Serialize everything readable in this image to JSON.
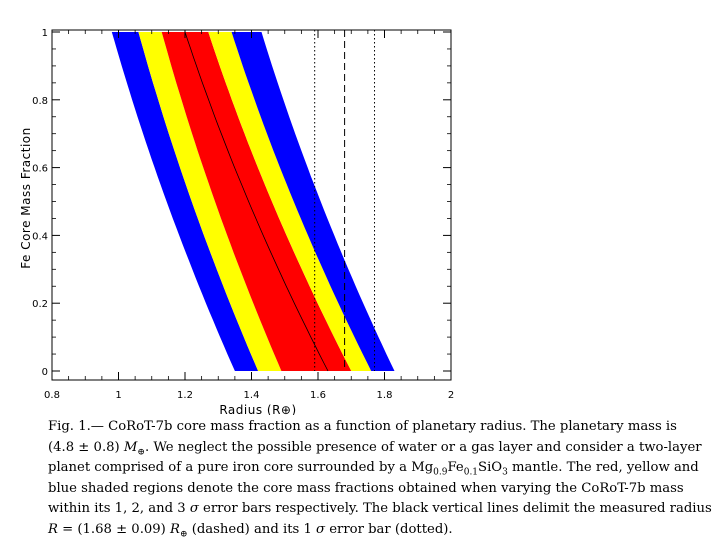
{
  "chart_data": {
    "type": "area",
    "xlabel": "Radius (R⊕)",
    "ylabel": "Fe Core Mass Fraction",
    "xlim": [
      0.8,
      2.0
    ],
    "ylim": [
      0,
      1
    ],
    "x_ticks": [
      "0.8",
      "1",
      "1.2",
      "1.4",
      "1.6",
      "1.8",
      "2"
    ],
    "y_ticks": [
      "0",
      "0.2",
      "0.4",
      "0.6",
      "0.8",
      "1"
    ],
    "band_colors": {
      "sigma1": "#ff0000",
      "sigma2": "#ffff00",
      "sigma3": "#0000ff"
    },
    "boundaries": [
      {
        "id": "b_l3",
        "top_x": 0.98,
        "bottom_x": 1.35
      },
      {
        "id": "b_l2",
        "top_x": 1.06,
        "bottom_x": 1.42
      },
      {
        "id": "b_l1",
        "top_x": 1.13,
        "bottom_x": 1.49
      },
      {
        "id": "b_r1",
        "top_x": 1.27,
        "bottom_x": 1.7
      },
      {
        "id": "b_r2",
        "top_x": 1.34,
        "bottom_x": 1.76
      },
      {
        "id": "b_r3",
        "top_x": 1.43,
        "bottom_x": 1.83
      }
    ],
    "central_curve": {
      "top_x": 1.2,
      "bottom_x": 1.63
    },
    "vertical_lines": [
      {
        "x": 1.59,
        "style": "dotted"
      },
      {
        "x": 1.68,
        "style": "dashed"
      },
      {
        "x": 1.77,
        "style": "dotted"
      }
    ]
  },
  "caption": {
    "line1": "Fig.  1.— CoRoT-7b core mass fraction as a function of planetary radius.  The planetary mass is",
    "line2_pre": "(4.8 ± 0.8) ",
    "line2_mass": "M",
    "line2_sub": "⊕",
    "line2_post": ".  We neglect the possible presence of water or a gas layer and consider a two-layer",
    "line3_pre": "planet comprised of a pure iron core surrounded by a Mg",
    "line3_sub1": "0.9",
    "line3_mid": "Fe",
    "line3_sub2": "0.1",
    "line3_post": "SiO",
    "line3_sub3": "3",
    "line3_end": " mantle. The red, yellow and",
    "line4": "blue shaded regions denote the core mass fractions obtained when varying the CoRoT-7b mass",
    "line5_pre": "within its 1, 2, and 3 ",
    "line5_sigma": "σ",
    "line5_post": " error bars respectively. The black vertical lines delimit the measured radius",
    "line6_r": "R",
    "line6_mid": " = (1.68 ± 0.09) ",
    "line6_rsym": "R",
    "line6_sub": "⊕",
    "line6_post1": " (dashed) and its 1 ",
    "line6_sigma": "σ",
    "line6_post2": " error bar (dotted)."
  }
}
